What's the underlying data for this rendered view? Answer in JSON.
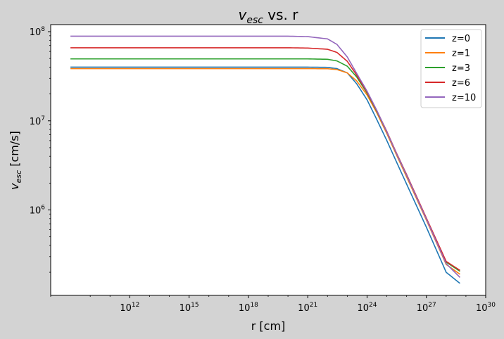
{
  "chart_data": {
    "type": "line",
    "title": "v_esc vs. r",
    "title_parts": {
      "var": "v",
      "sub": "esc",
      "rest": " vs. r"
    },
    "xlabel": "r [cm]",
    "ylabel": "v_esc [cm/s]",
    "ylabel_parts": {
      "var": "v",
      "sub": "esc",
      "rest": " [cm/s]"
    },
    "xscale": "log",
    "yscale": "log",
    "xlim": [
      100000000.0,
      1e+30
    ],
    "ylim": [
      110000.0,
      120000000.0
    ],
    "xticks": [
      {
        "base": "10",
        "exp": "12",
        "value": 1000000000000.0
      },
      {
        "base": "10",
        "exp": "15",
        "value": 1000000000000000.0
      },
      {
        "base": "10",
        "exp": "18",
        "value": 1e+18
      },
      {
        "base": "10",
        "exp": "21",
        "value": 1e+21
      },
      {
        "base": "10",
        "exp": "24",
        "value": 1e+24
      },
      {
        "base": "10",
        "exp": "27",
        "value": 1e+27
      },
      {
        "base": "10",
        "exp": "30",
        "value": 1e+30
      }
    ],
    "yticks": [
      {
        "base": "10",
        "exp": "6",
        "value": 1000000.0
      },
      {
        "base": "10",
        "exp": "7",
        "value": 10000000.0
      },
      {
        "base": "10",
        "exp": "8",
        "value": 100000000.0
      }
    ],
    "legend_position": "top-right",
    "grid": false,
    "x": [
      1000000000.0,
      10000000000.0,
      100000000000.0,
      1000000000000.0,
      10000000000000.0,
      100000000000000.0,
      1000000000000000.0,
      1e+16,
      1e+17,
      1e+18,
      1e+19,
      1e+20,
      1e+21,
      1e+22,
      3e+22,
      1e+23,
      3e+23,
      1e+24,
      3e+24,
      1e+25,
      3e+25,
      1e+26,
      1e+27,
      1e+28,
      5e+28
    ],
    "series": [
      {
        "name": "z=0",
        "color": "#1f77b4",
        "values": [
          40000000.0,
          40000000.0,
          40000000.0,
          40000000.0,
          40000000.0,
          40000000.0,
          40000000.0,
          40000000.0,
          40000000.0,
          40000000.0,
          40000000.0,
          40000000.0,
          40000000.0,
          39800000.0,
          38500000.0,
          34500000.0,
          26000000.0,
          17200000.0,
          10500000.0,
          6000000.0,
          3500000.0,
          1950000.0,
          640000.0,
          200000.0,
          150000.0
        ]
      },
      {
        "name": "z=1",
        "color": "#ff7f0e",
        "values": [
          38500000.0,
          38500000.0,
          38500000.0,
          38500000.0,
          38500000.0,
          38500000.0,
          38500000.0,
          38500000.0,
          38500000.0,
          38500000.0,
          38500000.0,
          38500000.0,
          38500000.0,
          38400000.0,
          37600000.0,
          34500000.0,
          28000000.0,
          19500000.0,
          12500000.0,
          7200000.0,
          4200000.0,
          2350000.0,
          770000.0,
          245000.0,
          190000.0
        ]
      },
      {
        "name": "z=3",
        "color": "#2ca02c",
        "values": [
          49500000.0,
          49500000.0,
          49500000.0,
          49500000.0,
          49500000.0,
          49500000.0,
          49500000.0,
          49500000.0,
          49500000.0,
          49500000.0,
          49500000.0,
          49500000.0,
          49500000.0,
          49000000.0,
          47000000.0,
          41000000.0,
          31000000.0,
          20500000.0,
          13000000.0,
          7500000.0,
          4350000.0,
          2450000.0,
          800000.0,
          260000.0,
          205000.0
        ]
      },
      {
        "name": "z=6",
        "color": "#d62728",
        "values": [
          66000000.0,
          66000000.0,
          66000000.0,
          66000000.0,
          66000000.0,
          66000000.0,
          66000000.0,
          66000000.0,
          66000000.0,
          66000000.0,
          66000000.0,
          66000000.0,
          65500000.0,
          63500000.0,
          58500000.0,
          46500000.0,
          32500000.0,
          21000000.0,
          13200000.0,
          7600000.0,
          4400000.0,
          2500000.0,
          810000.0,
          265000.0,
          210000.0
        ]
      },
      {
        "name": "z=10",
        "color": "#9467bd",
        "values": [
          89000000.0,
          89000000.0,
          89000000.0,
          89000000.0,
          89000000.0,
          89000000.0,
          89000000.0,
          89000000.0,
          89000000.0,
          89000000.0,
          89000000.0,
          89000000.0,
          88000000.0,
          83000000.0,
          72000000.0,
          52000000.0,
          34000000.0,
          21500000.0,
          13300000.0,
          7500000.0,
          4350000.0,
          2450000.0,
          790000.0,
          250000.0,
          175000.0
        ]
      }
    ]
  }
}
